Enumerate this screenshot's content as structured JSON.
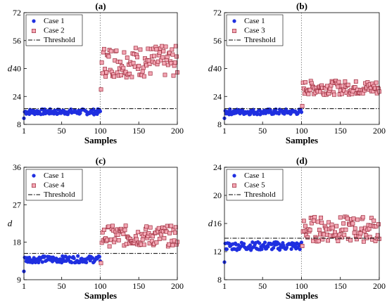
{
  "chart_data": [
    {
      "type": "scatter",
      "title": "(a)",
      "xlabel": "Samples",
      "ylabel": "d",
      "xlim": [
        1,
        200
      ],
      "ylim": [
        8,
        72
      ],
      "xticks": [
        "1",
        "50",
        "100",
        "150",
        "200"
      ],
      "yticks": [
        "8",
        "24",
        "40",
        "56",
        "72"
      ],
      "ytick_values": [
        8,
        24,
        40,
        56,
        72
      ],
      "threshold": 17,
      "change_point": 100,
      "legend": [
        "Case 1",
        "Case 2",
        "Threshold"
      ],
      "case1": {
        "base": 15.2,
        "amp": 1.6,
        "first": 11.5
      },
      "case2": {
        "base": 44,
        "amp": 9,
        "first": 28
      }
    },
    {
      "type": "scatter",
      "title": "(b)",
      "xlabel": "Samples",
      "ylabel": "d",
      "xlim": [
        1,
        200
      ],
      "ylim": [
        8,
        72
      ],
      "xticks": [
        "1",
        "50",
        "100",
        "150",
        "200"
      ],
      "yticks": [
        "8",
        "24",
        "40",
        "56",
        "72"
      ],
      "ytick_values": [
        8,
        24,
        40,
        56,
        72
      ],
      "threshold": 17,
      "change_point": 100,
      "legend": [
        "Case 1",
        "Case 3",
        "Threshold"
      ],
      "case1": {
        "base": 15.2,
        "amp": 1.6,
        "first": 11.5
      },
      "case2": {
        "base": 29,
        "amp": 4,
        "first": 18.5
      }
    },
    {
      "type": "scatter",
      "title": "(c)",
      "xlabel": "Samples",
      "ylabel": "d",
      "xlim": [
        1,
        200
      ],
      "ylim": [
        9,
        36
      ],
      "xticks": [
        "1",
        "50",
        "100",
        "150",
        "200"
      ],
      "yticks": [
        "9",
        "18",
        "27",
        "36"
      ],
      "ytick_values": [
        9,
        18,
        27,
        36
      ],
      "threshold": 15.3,
      "change_point": 100,
      "legend": [
        "Case 1",
        "Case 4",
        "Threshold"
      ],
      "case1": {
        "base": 13.9,
        "amp": 0.8,
        "first": 11.0
      },
      "case2": {
        "base": 19.5,
        "amp": 2.5,
        "first": 13.0
      }
    },
    {
      "type": "scatter",
      "title": "(d)",
      "xlabel": "Samples",
      "ylabel": "d",
      "xlim": [
        1,
        200
      ],
      "ylim": [
        8,
        24
      ],
      "xticks": [
        "1",
        "50",
        "100",
        "150",
        "200"
      ],
      "yticks": [
        "8",
        "12",
        "16",
        "20",
        "24"
      ],
      "ytick_values": [
        8,
        12,
        16,
        20,
        24
      ],
      "threshold": 13.9,
      "change_point": 100,
      "legend": [
        "Case 1",
        "Case 5",
        "Threshold"
      ],
      "case1": {
        "base": 12.8,
        "amp": 0.6,
        "first": 10.5
      },
      "case2": {
        "base": 15.2,
        "amp": 1.8,
        "first": 12.8
      }
    }
  ],
  "colors": {
    "case1": "#1f2fe0",
    "case2_fill": "#f4a7b5",
    "case2_edge": "#9c2b3b",
    "threshold": "#000000"
  }
}
